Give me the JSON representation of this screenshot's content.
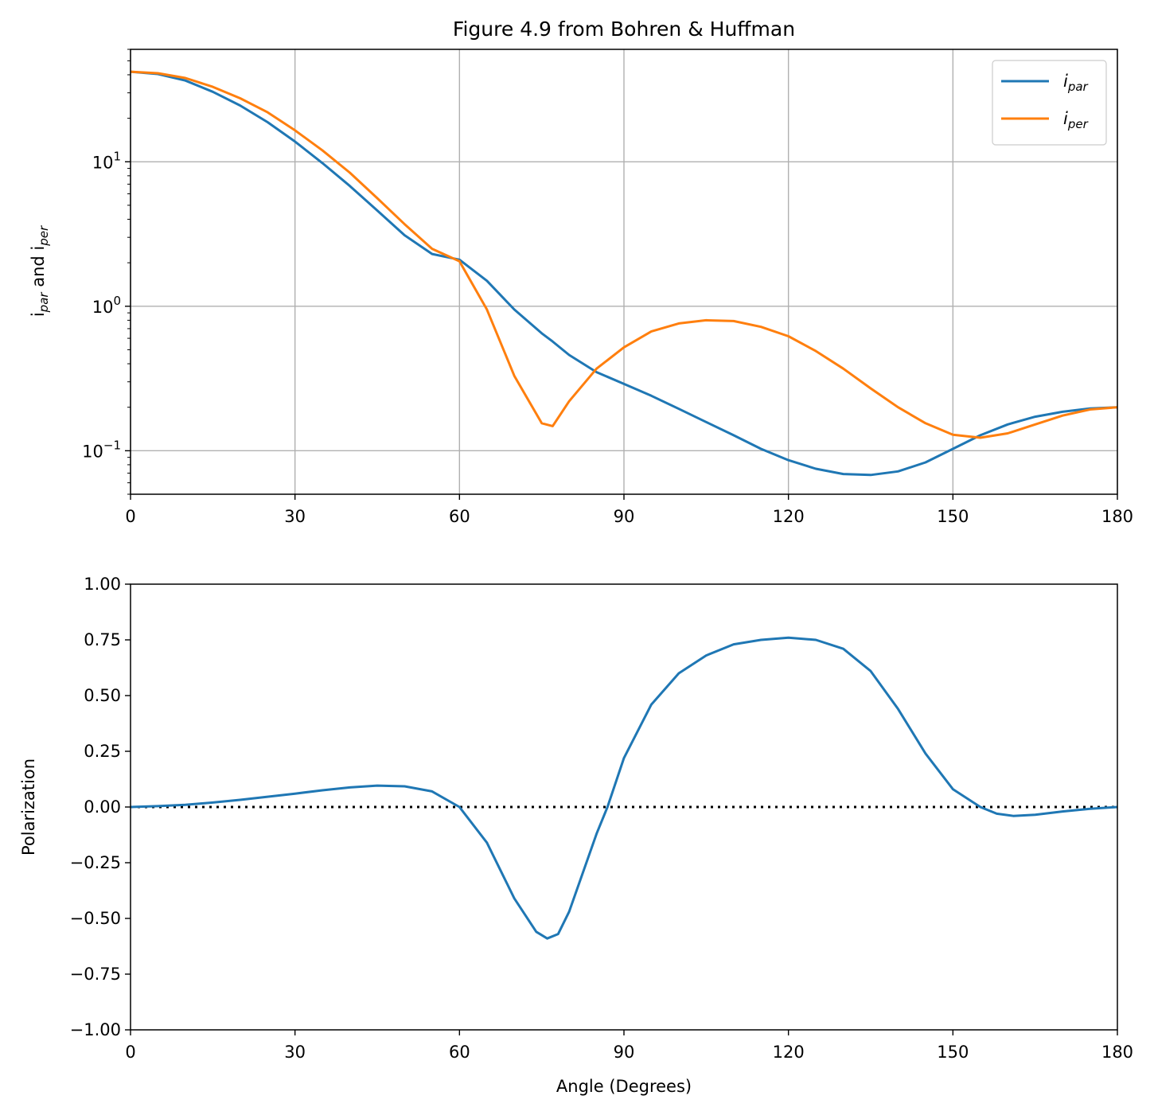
{
  "chart_data": [
    {
      "type": "line",
      "title": "Figure 4.9 from Bohren & Huffman",
      "xlabel": "",
      "ylabel_main": "i",
      "ylabel_sub1": "par",
      "ylabel_mid": " and i",
      "ylabel_sub2": "per",
      "yscale": "log",
      "xlim": [
        0,
        180
      ],
      "ylim": [
        0.05,
        60
      ],
      "grid": true,
      "legend_position": "top-right",
      "xticks": [
        0,
        30,
        60,
        90,
        120,
        150,
        180
      ],
      "xtick_labels": [
        "0",
        "30",
        "60",
        "90",
        "120",
        "150",
        "180"
      ],
      "yticks": [
        0.1,
        1,
        10
      ],
      "ytick_labels": [
        {
          "base": "10",
          "exp": "−1"
        },
        {
          "base": "10",
          "exp": "0"
        },
        {
          "base": "10",
          "exp": "1"
        }
      ],
      "x": [
        0,
        5,
        10,
        15,
        20,
        25,
        30,
        35,
        40,
        45,
        50,
        55,
        60,
        65,
        70,
        75,
        77,
        80,
        85,
        90,
        95,
        100,
        105,
        110,
        115,
        120,
        125,
        130,
        135,
        140,
        145,
        150,
        155,
        160,
        165,
        170,
        175,
        180
      ],
      "series": [
        {
          "name_main": "i",
          "name_sub": "par",
          "color": "#1f77b4",
          "values": [
            42,
            40.5,
            36.5,
            30.5,
            24.5,
            18.8,
            13.8,
            9.8,
            6.8,
            4.6,
            3.1,
            2.3,
            2.1,
            1.5,
            0.95,
            0.65,
            0.57,
            0.46,
            0.35,
            0.29,
            0.24,
            0.195,
            0.158,
            0.128,
            0.103,
            0.086,
            0.075,
            0.069,
            0.068,
            0.072,
            0.083,
            0.103,
            0.128,
            0.152,
            0.172,
            0.186,
            0.196,
            0.2
          ]
        },
        {
          "name_main": "i",
          "name_sub": "per",
          "color": "#ff7f0e",
          "values": [
            42,
            41,
            38,
            33,
            27.5,
            22,
            16.5,
            12,
            8.4,
            5.6,
            3.7,
            2.5,
            2.05,
            0.95,
            0.33,
            0.155,
            0.148,
            0.22,
            0.37,
            0.52,
            0.67,
            0.76,
            0.8,
            0.79,
            0.72,
            0.62,
            0.49,
            0.37,
            0.27,
            0.2,
            0.155,
            0.129,
            0.123,
            0.132,
            0.152,
            0.175,
            0.193,
            0.2
          ]
        }
      ]
    },
    {
      "type": "line",
      "title": "",
      "xlabel": "Angle (Degrees)",
      "ylabel": "Polarization",
      "xlim": [
        0,
        180
      ],
      "ylim": [
        -1,
        1
      ],
      "grid": false,
      "xticks": [
        0,
        30,
        60,
        90,
        120,
        150,
        180
      ],
      "xtick_labels": [
        "0",
        "30",
        "60",
        "90",
        "120",
        "150",
        "180"
      ],
      "yticks": [
        -1,
        -0.75,
        -0.5,
        -0.25,
        0,
        0.25,
        0.5,
        0.75,
        1
      ],
      "ytick_labels": [
        "−1.00",
        "−0.75",
        "−0.50",
        "−0.25",
        "0.00",
        "0.25",
        "0.50",
        "0.75",
        "1.00"
      ],
      "reference_line": {
        "y": 0,
        "style": "dotted",
        "color": "#000000"
      },
      "x": [
        0,
        5,
        10,
        15,
        20,
        25,
        30,
        35,
        40,
        45,
        50,
        55,
        60,
        65,
        70,
        74,
        76,
        78,
        80,
        85,
        87,
        90,
        95,
        100,
        105,
        110,
        115,
        120,
        125,
        130,
        135,
        140,
        145,
        150,
        155,
        158,
        161,
        165,
        170,
        175,
        180
      ],
      "series": [
        {
          "color": "#1f77b4",
          "values": [
            0,
            0.004,
            0.01,
            0.02,
            0.032,
            0.046,
            0.06,
            0.075,
            0.088,
            0.096,
            0.093,
            0.07,
            0.0,
            -0.16,
            -0.41,
            -0.56,
            -0.59,
            -0.57,
            -0.47,
            -0.12,
            0.0,
            0.22,
            0.46,
            0.6,
            0.68,
            0.73,
            0.75,
            0.76,
            0.75,
            0.71,
            0.61,
            0.44,
            0.24,
            0.08,
            0.0,
            -0.03,
            -0.04,
            -0.035,
            -0.02,
            -0.008,
            0
          ]
        }
      ]
    }
  ]
}
